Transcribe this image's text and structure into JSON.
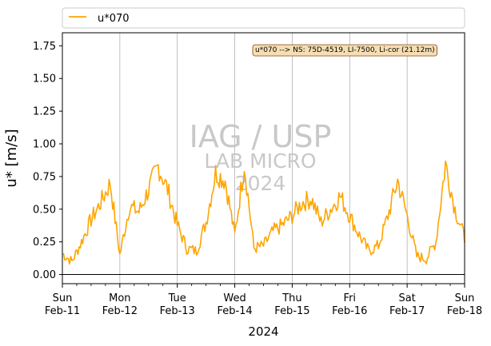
{
  "chart_data": {
    "type": "line",
    "xlabel": "2024",
    "ylabel": "u* [m/s]",
    "ylim": [
      -0.07,
      1.85
    ],
    "yticks": [
      0.0,
      0.25,
      0.5,
      0.75,
      1.0,
      1.25,
      1.5,
      1.75
    ],
    "ytick_labels": [
      "0.00",
      "0.25",
      "0.50",
      "0.75",
      "1.00",
      "1.25",
      "1.50",
      "1.75"
    ],
    "xlim_days": [
      0,
      7
    ],
    "xtick_labels": [
      [
        "Sun",
        "Feb-11"
      ],
      [
        "Mon",
        "Feb-12"
      ],
      [
        "Tue",
        "Feb-13"
      ],
      [
        "Wed",
        "Feb-14"
      ],
      [
        "Thu",
        "Feb-15"
      ],
      [
        "Fri",
        "Feb-16"
      ],
      [
        "Sat",
        "Feb-17"
      ],
      [
        "Sun",
        "Feb-18"
      ]
    ],
    "grid": "vertical-major",
    "hline": 0,
    "legend_placement": "top-outside",
    "annotation": "u*070 --> NS: 75D-4519, LI-7500, Li-cor (21.12m)",
    "watermark": [
      "IAG / USP",
      "LAB MICRO",
      "2024"
    ],
    "series": [
      {
        "name": "u*070",
        "color": "#ffa500",
        "x_hours": [
          0,
          4,
          8,
          12,
          16,
          20,
          24,
          28,
          32,
          36,
          40,
          44,
          48,
          52,
          56,
          60,
          64,
          68,
          72,
          76,
          80,
          84,
          88,
          92,
          96,
          100,
          104,
          108,
          112,
          116,
          120,
          124,
          128,
          132,
          136,
          140,
          144,
          148,
          152,
          156,
          160,
          164,
          168
        ],
        "values": [
          0.16,
          0.1,
          0.25,
          0.42,
          0.55,
          0.7,
          0.15,
          0.52,
          0.48,
          0.65,
          0.83,
          0.65,
          0.38,
          0.2,
          0.18,
          0.4,
          0.78,
          0.72,
          0.3,
          0.85,
          0.2,
          0.22,
          0.33,
          0.38,
          0.45,
          0.55,
          0.58,
          0.4,
          0.5,
          0.6,
          0.45,
          0.3,
          0.18,
          0.22,
          0.45,
          0.72,
          0.45,
          0.14,
          0.12,
          0.25,
          0.85,
          0.5,
          0.28
        ]
      }
    ]
  }
}
